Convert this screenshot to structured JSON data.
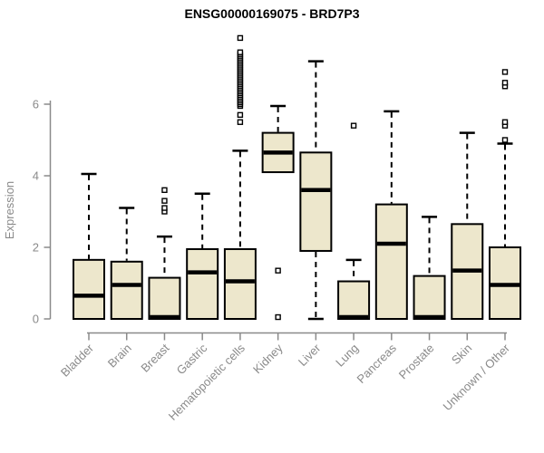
{
  "colors": {
    "box_fill": "#EDE7CC",
    "box_stroke": "#000000",
    "median": "#000000",
    "whisker": "#000000",
    "outlier_fill": "#FFFFFF",
    "axis": "#8a8a8a",
    "title": "#000000",
    "background": "#FFFFFF"
  },
  "chart_data": {
    "type": "boxplot",
    "title": "ENSG00000169075 - BRD7P3",
    "xlabel": "",
    "ylabel": "Expression",
    "y_ticks": [
      0,
      2,
      4,
      6
    ],
    "ylim": [
      0,
      6
    ],
    "grid": false,
    "legend": "none",
    "categories": [
      "Bladder",
      "Brain",
      "Breast",
      "Gastric",
      "Hematopoietic cells",
      "Kidney",
      "Liver",
      "Lung",
      "Pancreas",
      "Prostate",
      "Skin",
      "Unknown / Other"
    ],
    "series": [
      {
        "name": "Bladder",
        "whisker_low": 0,
        "q1": 0,
        "median": 0.65,
        "q3": 1.65,
        "whisker_high": 4.05,
        "outliers": []
      },
      {
        "name": "Brain",
        "whisker_low": 0,
        "q1": 0,
        "median": 0.95,
        "q3": 1.6,
        "whisker_high": 3.1,
        "outliers": []
      },
      {
        "name": "Breast",
        "whisker_low": 0,
        "q1": 0,
        "median": 0.05,
        "q3": 1.15,
        "whisker_high": 2.3,
        "outliers": [
          3.0,
          3.1,
          3.3,
          3.6
        ]
      },
      {
        "name": "Gastric",
        "whisker_low": 0,
        "q1": 0,
        "median": 1.3,
        "q3": 1.95,
        "whisker_high": 3.5,
        "outliers": []
      },
      {
        "name": "Hematopoietic cells",
        "whisker_low": 0,
        "q1": 0,
        "median": 1.05,
        "q3": 1.95,
        "whisker_high": 4.7,
        "outliers": [
          5.5,
          5.7,
          5.95,
          6.0,
          6.05,
          6.1,
          6.15,
          6.2,
          6.25,
          6.3,
          6.35,
          6.4,
          6.45,
          6.5,
          6.55,
          6.6,
          6.65,
          6.7,
          6.75,
          6.8,
          6.85,
          6.9,
          6.95,
          7.0,
          7.05,
          7.1,
          7.15,
          7.2,
          7.25,
          7.3,
          7.35,
          7.4,
          7.45,
          7.85
        ]
      },
      {
        "name": "Kidney",
        "whisker_low": 4.1,
        "q1": 4.1,
        "median": 4.65,
        "q3": 5.2,
        "whisker_high": 5.95,
        "outliers": [
          1.35,
          0.05
        ]
      },
      {
        "name": "Liver",
        "whisker_low": 0,
        "q1": 1.9,
        "median": 3.6,
        "q3": 4.65,
        "whisker_high": 7.2,
        "outliers": []
      },
      {
        "name": "Lung",
        "whisker_low": 0,
        "q1": 0,
        "median": 0.05,
        "q3": 1.05,
        "whisker_high": 1.65,
        "outliers": [
          5.4
        ]
      },
      {
        "name": "Pancreas",
        "whisker_low": 0,
        "q1": 0,
        "median": 2.1,
        "q3": 3.2,
        "whisker_high": 5.8,
        "outliers": []
      },
      {
        "name": "Prostate",
        "whisker_low": 0,
        "q1": 0,
        "median": 0.05,
        "q3": 1.2,
        "whisker_high": 2.85,
        "outliers": []
      },
      {
        "name": "Skin",
        "whisker_low": 0,
        "q1": 0,
        "median": 1.35,
        "q3": 2.65,
        "whisker_high": 5.2,
        "outliers": []
      },
      {
        "name": "Unknown / Other",
        "whisker_low": 0,
        "q1": 0,
        "median": 0.95,
        "q3": 2.0,
        "whisker_high": 4.9,
        "outliers": [
          5.0,
          5.4,
          5.5,
          6.5,
          6.6,
          6.9
        ]
      }
    ]
  }
}
